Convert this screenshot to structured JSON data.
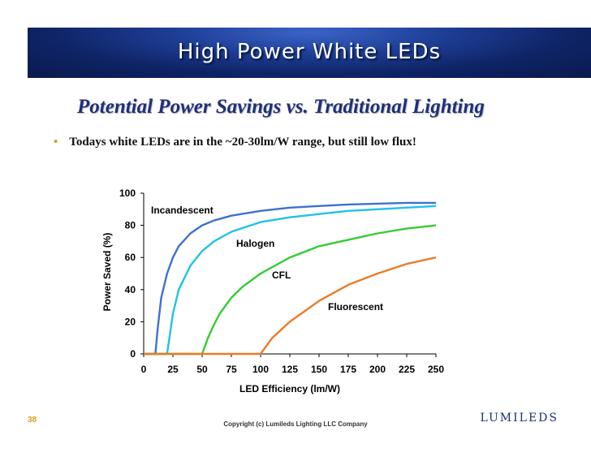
{
  "slide": {
    "title": "High Power White LEDs",
    "subtitle": "Potential Power Savings vs. Traditional Lighting",
    "bullet": "Todays white LEDs are in the ~20-30lm/W range, but still low flux!",
    "page_number": "38",
    "copyright": "Copyright (c) Lumileds Lighting LLC Company",
    "logo_text": "LUMILEDS"
  },
  "colors": {
    "banner": "#1d3d94",
    "subtitle": "#1f2f7a",
    "bullet": "#c8a020",
    "incandescent": "#3f6fd1",
    "halogen": "#1ec2e8",
    "cfl": "#33cc33",
    "fluorescent": "#ee7a24"
  },
  "chart_data": {
    "type": "line",
    "xlabel": "LED Efficiency (lm/W)",
    "ylabel": "Power Saved (%)",
    "xlim": [
      0,
      250
    ],
    "ylim": [
      0,
      100
    ],
    "x_ticks": [
      0,
      25,
      50,
      75,
      100,
      125,
      150,
      175,
      200,
      225,
      250
    ],
    "y_ticks": [
      0,
      20,
      40,
      60,
      80,
      100
    ],
    "grid": false,
    "series": [
      {
        "name": "Incandescent",
        "color": "#3f6fd1",
        "x": [
          0,
          10,
          12,
          15,
          20,
          25,
          30,
          40,
          50,
          60,
          75,
          100,
          125,
          150,
          175,
          200,
          225,
          250
        ],
        "y": [
          0,
          0,
          16,
          35,
          50,
          60,
          67,
          75,
          80,
          83,
          86,
          89,
          91,
          92,
          93,
          93.5,
          94,
          94
        ]
      },
      {
        "name": "Halogen",
        "color": "#1ec2e8",
        "x": [
          0,
          20,
          22,
          25,
          30,
          40,
          50,
          60,
          75,
          100,
          125,
          150,
          175,
          200,
          225,
          250
        ],
        "y": [
          0,
          0,
          10,
          25,
          40,
          55,
          64,
          70,
          76,
          82,
          85,
          87,
          89,
          90,
          91,
          92
        ]
      },
      {
        "name": "CFL",
        "color": "#33cc33",
        "x": [
          0,
          50,
          55,
          60,
          65,
          75,
          85,
          100,
          125,
          150,
          175,
          200,
          225,
          250
        ],
        "y": [
          0,
          0,
          10,
          18,
          25,
          35,
          42,
          50,
          60,
          67,
          71,
          75,
          78,
          80
        ]
      },
      {
        "name": "Fluorescent",
        "color": "#ee7a24",
        "x": [
          0,
          100,
          110,
          125,
          150,
          175,
          200,
          225,
          250
        ],
        "y": [
          0,
          0,
          10,
          20,
          33,
          43,
          50,
          56,
          60
        ]
      }
    ],
    "annotations": [
      "Incandescent",
      "Halogen",
      "CFL",
      "Fluorescent"
    ]
  }
}
